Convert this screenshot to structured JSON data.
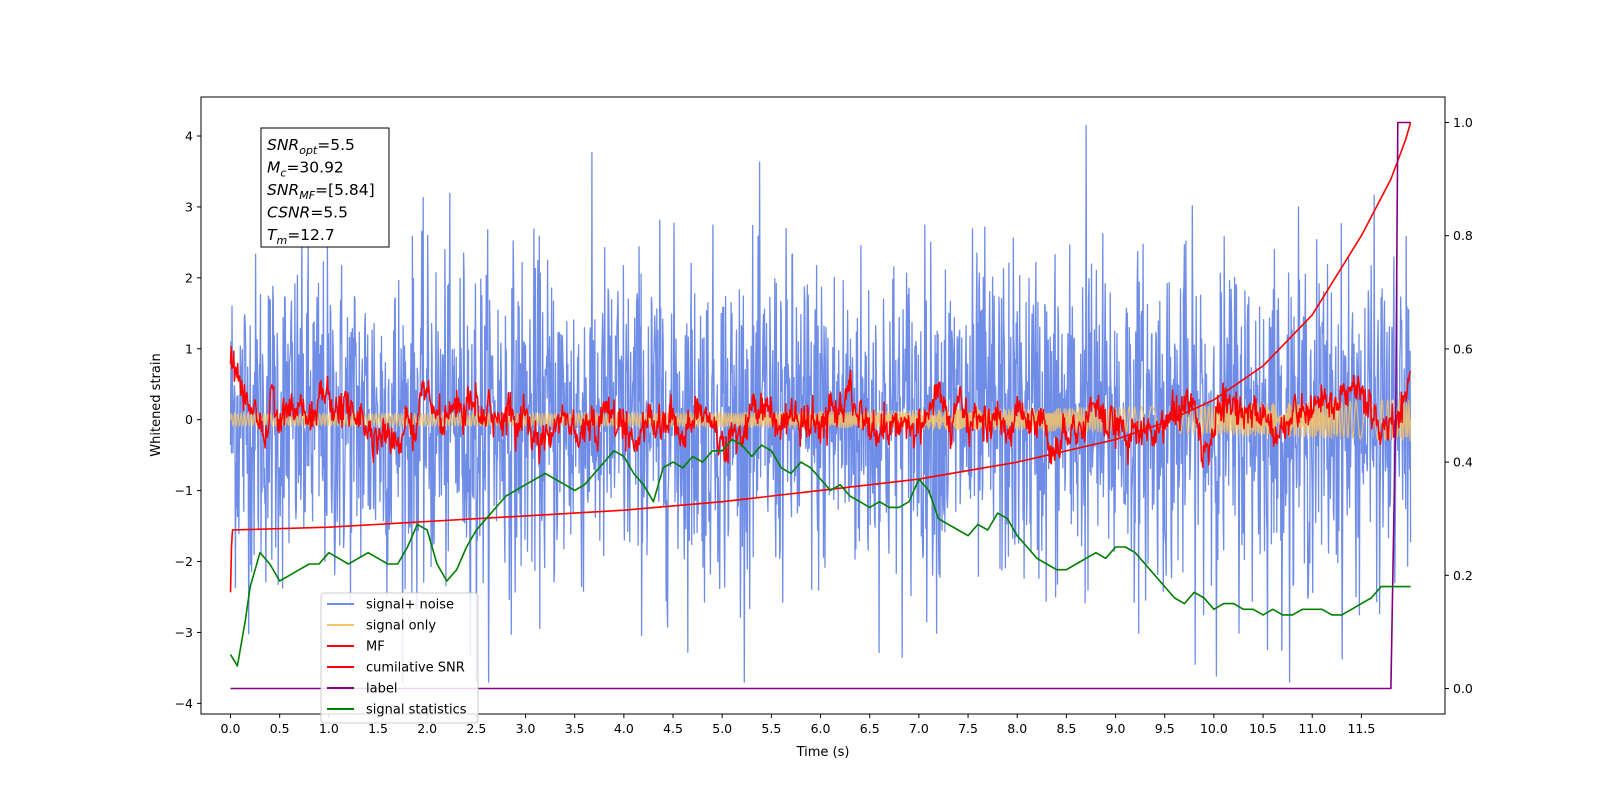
{
  "chart_data": {
    "type": "line",
    "xlabel": "Time (s)",
    "ylabel": "Whitened strain",
    "xlim": [
      -0.3,
      12.35
    ],
    "ylim_left": [
      -4.15,
      4.55
    ],
    "ylim_right": [
      -0.045,
      1.045
    ],
    "x_ticks": [
      "0.0",
      "0.5",
      "1.0",
      "1.5",
      "2.0",
      "2.5",
      "3.0",
      "3.5",
      "4.0",
      "4.5",
      "5.0",
      "5.5",
      "6.0",
      "6.5",
      "7.0",
      "7.5",
      "8.0",
      "8.5",
      "9.0",
      "9.5",
      "10.0",
      "10.5",
      "11.0",
      "11.5"
    ],
    "y_ticks_left": [
      "4",
      "3",
      "2",
      "1",
      "0",
      "−1",
      "−2",
      "−3",
      "−4"
    ],
    "y_ticks_right": [
      "1.0",
      "0.8",
      "0.6",
      "0.4",
      "0.2",
      "0.0"
    ],
    "grid": false,
    "legend_position": "lower-left",
    "annotation": [
      {
        "var": "SNR",
        "sub": "opt",
        "val": "=5.5"
      },
      {
        "var": "M",
        "sub": "c",
        "val": "=30.92"
      },
      {
        "var": "SNR",
        "sub": "MF",
        "val": "=[5.84]"
      },
      {
        "var": "CSNR",
        "sub": "",
        "val": "=5.5"
      },
      {
        "var": "T",
        "sub": "m",
        "val": "=12.7"
      }
    ],
    "series": [
      {
        "name": "signal+ noise",
        "axis": "left",
        "color": "#6f8de6",
        "style": "noise",
        "x_range": [
          0.0,
          12.0
        ],
        "amplitude": 1.15,
        "min": -3.7,
        "max": 4.15
      },
      {
        "name": "signal only",
        "axis": "left",
        "color": "#f5c36a",
        "style": "chirp",
        "x_range": [
          0.0,
          12.0
        ],
        "amplitude": 0.3
      },
      {
        "name": "MF",
        "axis": "left",
        "color": "#ff0000",
        "style": "fluctuation",
        "x_range": [
          0.0,
          12.0
        ],
        "start": 0.9,
        "end": 1.0,
        "spread": 0.18
      },
      {
        "name": "cumilative SNR",
        "axis": "right",
        "color": "#ff0000",
        "style": "cumulative",
        "x": [
          0.0,
          0.01,
          0.02,
          1.0,
          2.0,
          3.0,
          4.0,
          5.0,
          6.0,
          7.0,
          7.5,
          8.0,
          8.5,
          9.0,
          9.5,
          10.0,
          10.5,
          11.0,
          11.5,
          11.8,
          11.95,
          12.0
        ],
        "values": [
          0.17,
          0.25,
          0.28,
          0.285,
          0.295,
          0.305,
          0.315,
          0.33,
          0.35,
          0.37,
          0.385,
          0.4,
          0.42,
          0.44,
          0.47,
          0.51,
          0.57,
          0.66,
          0.8,
          0.9,
          0.97,
          1.0
        ]
      },
      {
        "name": "label",
        "axis": "right",
        "color": "#800080",
        "style": "step",
        "x": [
          0.0,
          11.8,
          11.85,
          11.87,
          12.0
        ],
        "values": [
          0.0,
          0.0,
          0.5,
          1.0,
          1.0
        ]
      },
      {
        "name": "signal statistics",
        "axis": "right",
        "color": "#008000",
        "style": "line",
        "x": [
          0.0,
          0.07,
          0.15,
          0.2,
          0.3,
          0.4,
          0.5,
          0.6,
          0.7,
          0.8,
          0.9,
          1.0,
          1.1,
          1.2,
          1.3,
          1.4,
          1.5,
          1.6,
          1.7,
          1.8,
          1.9,
          2.0,
          2.1,
          2.2,
          2.3,
          2.4,
          2.5,
          2.6,
          2.7,
          2.8,
          2.9,
          3.0,
          3.1,
          3.2,
          3.3,
          3.4,
          3.5,
          3.6,
          3.7,
          3.8,
          3.9,
          4.0,
          4.1,
          4.2,
          4.3,
          4.4,
          4.5,
          4.6,
          4.7,
          4.8,
          4.9,
          5.0,
          5.1,
          5.2,
          5.3,
          5.4,
          5.5,
          5.6,
          5.7,
          5.8,
          5.9,
          6.0,
          6.1,
          6.2,
          6.3,
          6.4,
          6.5,
          6.6,
          6.7,
          6.8,
          6.9,
          7.0,
          7.1,
          7.2,
          7.3,
          7.4,
          7.5,
          7.6,
          7.7,
          7.8,
          7.9,
          8.0,
          8.1,
          8.2,
          8.3,
          8.4,
          8.5,
          8.6,
          8.7,
          8.8,
          8.9,
          9.0,
          9.1,
          9.2,
          9.3,
          9.4,
          9.5,
          9.6,
          9.7,
          9.8,
          9.9,
          10.0,
          10.1,
          10.2,
          10.3,
          10.4,
          10.5,
          10.6,
          10.7,
          10.8,
          10.9,
          11.0,
          11.1,
          11.2,
          11.3,
          11.4,
          11.5,
          11.6,
          11.7,
          11.8,
          11.9,
          12.0
        ],
        "values": [
          0.06,
          0.04,
          0.12,
          0.18,
          0.24,
          0.22,
          0.19,
          0.2,
          0.21,
          0.22,
          0.22,
          0.24,
          0.23,
          0.22,
          0.23,
          0.24,
          0.23,
          0.22,
          0.22,
          0.25,
          0.29,
          0.28,
          0.22,
          0.19,
          0.21,
          0.25,
          0.28,
          0.3,
          0.32,
          0.34,
          0.35,
          0.36,
          0.37,
          0.38,
          0.37,
          0.36,
          0.35,
          0.36,
          0.38,
          0.4,
          0.42,
          0.41,
          0.38,
          0.36,
          0.33,
          0.39,
          0.4,
          0.39,
          0.41,
          0.4,
          0.42,
          0.42,
          0.44,
          0.43,
          0.41,
          0.43,
          0.42,
          0.39,
          0.38,
          0.4,
          0.39,
          0.37,
          0.35,
          0.36,
          0.34,
          0.33,
          0.32,
          0.33,
          0.32,
          0.32,
          0.33,
          0.37,
          0.35,
          0.3,
          0.29,
          0.28,
          0.27,
          0.29,
          0.28,
          0.31,
          0.3,
          0.27,
          0.25,
          0.23,
          0.22,
          0.21,
          0.21,
          0.22,
          0.23,
          0.24,
          0.23,
          0.25,
          0.25,
          0.24,
          0.22,
          0.2,
          0.18,
          0.16,
          0.15,
          0.17,
          0.16,
          0.14,
          0.15,
          0.15,
          0.14,
          0.14,
          0.13,
          0.14,
          0.13,
          0.13,
          0.14,
          0.14,
          0.14,
          0.13,
          0.13,
          0.14,
          0.15,
          0.16,
          0.18,
          0.18,
          0.18,
          0.18
        ]
      }
    ]
  }
}
